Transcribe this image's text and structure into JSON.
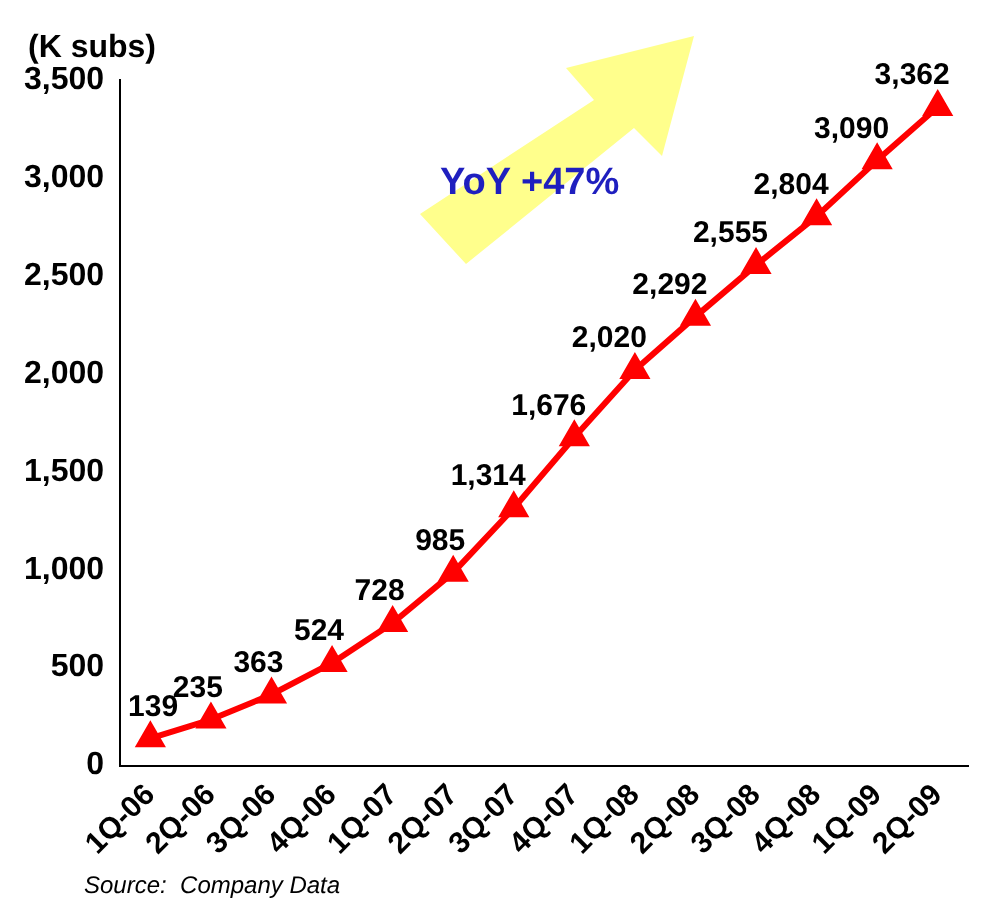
{
  "chart_data": {
    "type": "line",
    "ylabel": "(K subs)",
    "categories": [
      "1Q-06",
      "2Q-06",
      "3Q-06",
      "4Q-06",
      "1Q-07",
      "2Q-07",
      "3Q-07",
      "4Q-07",
      "1Q-08",
      "2Q-08",
      "3Q-08",
      "4Q-08",
      "1Q-09",
      "2Q-09"
    ],
    "series": [
      {
        "color": "#ff0000",
        "values": [
          139,
          235,
          363,
          524,
          728,
          985,
          1314,
          1676,
          2020,
          2292,
          2555,
          2804,
          3090,
          3362
        ],
        "value_labels": [
          "139",
          "235",
          "363",
          "524",
          "728",
          "985",
          "1,314",
          "1,676",
          "2,020",
          "2,292",
          "2,555",
          "2,804",
          "3,090",
          "3,362"
        ]
      }
    ],
    "ylim": [
      0,
      3500
    ],
    "yticks": [
      0,
      500,
      {
        "value": 1000,
        "label": "1,000"
      },
      {
        "value": 1500,
        "label": "1,500"
      },
      {
        "value": 2000,
        "label": "2,000"
      },
      {
        "value": 2500,
        "label": "2,500"
      },
      {
        "value": 3000,
        "label": "3,000"
      },
      {
        "value": 3500,
        "label": "3,500"
      }
    ],
    "grid": false,
    "legend": false,
    "marker": "triangle",
    "line_style": "solid",
    "annotations": [
      "YoY +47%",
      "Source:  Company Data"
    ]
  }
}
